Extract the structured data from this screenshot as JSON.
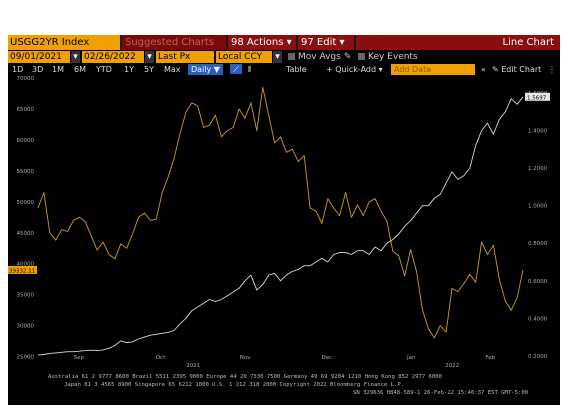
{
  "toolbar": {
    "ticker": "USGG2YR Index",
    "suggested": "Suggested Charts",
    "actions": "98 Actions",
    "edit": "97 Edit",
    "chart_type": "Line Chart",
    "date_from": "09/01/2021",
    "date_to": "02/26/2022",
    "field": "Last Px",
    "currency": "Local CCY",
    "mov_avgs": "Mov Avgs",
    "key_events": "Key Events",
    "periods": [
      "1D",
      "3D",
      "1M",
      "6M",
      "YTD",
      "1Y",
      "5Y",
      "Max"
    ],
    "frequency": "Daily",
    "table": "Table",
    "quick_add": "+ Quick-Add",
    "add_data_placeholder": "Add Data",
    "edit_chart": "Edit Chart"
  },
  "chart_data": {
    "type": "line",
    "x_range": [
      "2021-09-01",
      "2022-02-26"
    ],
    "x_month_labels": [
      "Sep",
      "Oct",
      "Nov",
      "Dec",
      "Jan",
      "Feb"
    ],
    "x_year_labels": [
      "2021",
      "2022"
    ],
    "left_axis": {
      "ylim": [
        23000,
        70000
      ],
      "ticks": [
        25000,
        30000,
        35000,
        40000,
        45000,
        50000,
        55000,
        60000,
        65000,
        70000
      ]
    },
    "right_axis": {
      "ylim": [
        0.13,
        1.68
      ],
      "ticks": [
        "0.2000",
        "0.4000",
        "0.6000",
        "0.8000",
        "1.0000",
        "1.2000",
        "1.4000",
        "1.6000"
      ]
    },
    "left_last_label": "39332.11",
    "right_last_label": "1.5697",
    "series": [
      {
        "color": "#c8a020",
        "axis": "left",
        "values": [
          49000,
          51500,
          45000,
          43800,
          45500,
          45200,
          47000,
          47500,
          46800,
          44500,
          42200,
          43500,
          41500,
          40800,
          43200,
          42500,
          44800,
          47500,
          48200,
          47000,
          47200,
          51500,
          54000,
          57000,
          61000,
          64500,
          66000,
          65500,
          62000,
          62400,
          64000,
          60500,
          61500,
          62000,
          65000,
          63500,
          66000,
          61500,
          68500,
          64000,
          59500,
          60500,
          58000,
          58500,
          56500,
          57500,
          49000,
          48500,
          46500,
          50500,
          49000,
          47800,
          51500,
          47500,
          49500,
          47800,
          50000,
          50500,
          48500,
          46800,
          42000,
          41300,
          38000,
          42300,
          38800,
          32500,
          29500,
          28000,
          30000,
          29000,
          36000,
          35500,
          36800,
          38300,
          37000,
          43500,
          41500,
          43000,
          37500,
          34000,
          32500,
          34500,
          39000
        ]
      },
      {
        "color": "#d8d8d8",
        "axis": "right",
        "values": [
          0.205,
          0.207,
          0.213,
          0.216,
          0.219,
          0.222,
          0.222,
          0.225,
          0.228,
          0.23,
          0.228,
          0.232,
          0.24,
          0.255,
          0.28,
          0.27,
          0.275,
          0.29,
          0.3,
          0.31,
          0.315,
          0.32,
          0.325,
          0.335,
          0.37,
          0.4,
          0.44,
          0.46,
          0.48,
          0.5,
          0.49,
          0.5,
          0.52,
          0.54,
          0.56,
          0.6,
          0.63,
          0.55,
          0.58,
          0.63,
          0.64,
          0.6,
          0.63,
          0.65,
          0.66,
          0.68,
          0.68,
          0.7,
          0.72,
          0.7,
          0.74,
          0.75,
          0.75,
          0.74,
          0.76,
          0.76,
          0.74,
          0.78,
          0.76,
          0.8,
          0.82,
          0.85,
          0.89,
          0.92,
          0.96,
          1.0,
          1.0,
          1.04,
          1.06,
          1.12,
          1.18,
          1.14,
          1.16,
          1.2,
          1.32,
          1.4,
          1.44,
          1.38,
          1.46,
          1.5,
          1.57,
          1.54,
          1.58
        ]
      }
    ],
    "footer": {
      "line1": "Australia 61 2 9777 8600  Brazil 5511 2395 9000  Europe 44 20 7330 7500  Germany 49 69 9204 1210  Hong Kong 852 2977 6000",
      "line2": "Japan 81 3 4565 8900        Singapore 65 6212 1000        U.S. 1 212 318 2000        Copyright 2022 Bloomberg Finance L.P.",
      "line3": "SN 329636 H848-589-1  26-Feb-22  15:40:37 EST   GMT-5:00"
    }
  },
  "colors": {
    "gold": "#c8a020",
    "white_line": "#d8d8d8",
    "orange": "#f0a000",
    "red": "#8a1010",
    "blue": "#2a5ec0"
  }
}
